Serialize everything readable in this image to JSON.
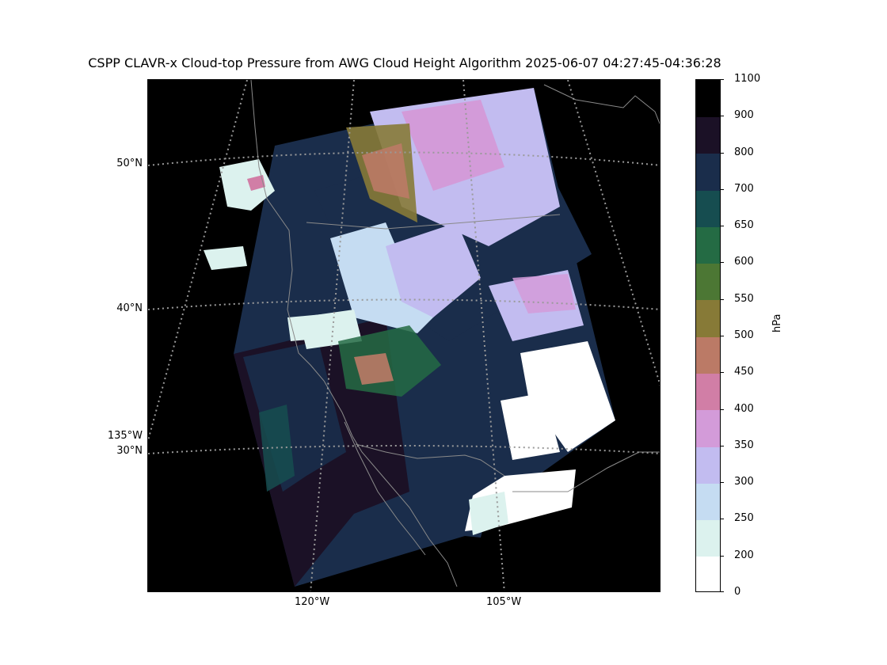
{
  "title": "CSPP CLAVR-x Cloud-top Pressure from AWG Cloud Height Algorithm 2025-06-07 04:27:45-04:36:28",
  "map": {
    "lat_labels": [
      {
        "text": "50°N",
        "value": 50
      },
      {
        "text": "40°N",
        "value": 40
      },
      {
        "text": "30°N",
        "value": 30
      }
    ],
    "lon_labels": [
      {
        "text": "135°W",
        "value": -135,
        "side": "left"
      },
      {
        "text": "120°W",
        "value": -120,
        "side": "bottom"
      },
      {
        "text": "105°W",
        "value": -105,
        "side": "bottom"
      }
    ],
    "gridline_color": "#9a9a9a",
    "coast_color": "#8a8a8a",
    "background_color": "#000000"
  },
  "colorbar": {
    "label": "hPa",
    "ticks": [
      "0",
      "200",
      "250",
      "300",
      "350",
      "400",
      "450",
      "500",
      "550",
      "600",
      "650",
      "700",
      "800",
      "900",
      "1100"
    ],
    "bins": [
      {
        "from": 0,
        "to": 200,
        "color": "#ffffff"
      },
      {
        "from": 200,
        "to": 250,
        "color": "#dcf2ee"
      },
      {
        "from": 250,
        "to": 300,
        "color": "#c5dcf2"
      },
      {
        "from": 300,
        "to": 350,
        "color": "#c2bcf0"
      },
      {
        "from": 350,
        "to": 400,
        "color": "#d39bd9"
      },
      {
        "from": 400,
        "to": 450,
        "color": "#d17ea6"
      },
      {
        "from": 450,
        "to": 500,
        "color": "#bb7a66"
      },
      {
        "from": 500,
        "to": 550,
        "color": "#877a37"
      },
      {
        "from": 550,
        "to": 600,
        "color": "#4c7734"
      },
      {
        "from": 600,
        "to": 650,
        "color": "#246b44"
      },
      {
        "from": 650,
        "to": 700,
        "color": "#164d50"
      },
      {
        "from": 700,
        "to": 800,
        "color": "#1a2d4b"
      },
      {
        "from": 800,
        "to": 900,
        "color": "#1b1126"
      },
      {
        "from": 900,
        "to": 1100,
        "color": "#000000"
      }
    ]
  }
}
